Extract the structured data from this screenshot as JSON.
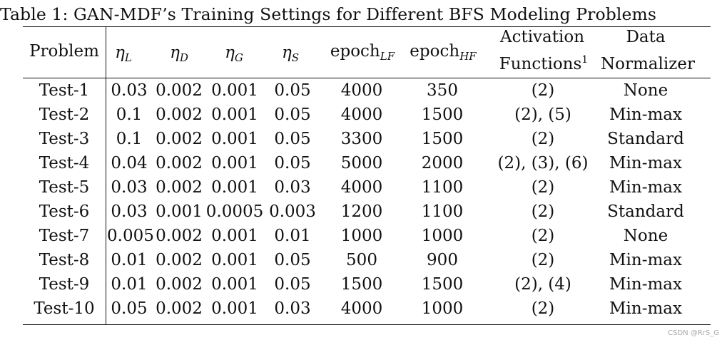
{
  "caption": "Table 1: GAN-MDF’s Training Settings for Different BFS Modeling Problems",
  "headers": {
    "problem": "Problem",
    "eta_l": {
      "symbol": "η",
      "sub": "L"
    },
    "eta_d": {
      "symbol": "η",
      "sub": "D"
    },
    "eta_g": {
      "symbol": "η",
      "sub": "G"
    },
    "eta_s": {
      "symbol": "η",
      "sub": "S"
    },
    "epoch_lf": {
      "base": "epoch",
      "sub": "LF"
    },
    "epoch_hf": {
      "base": "epoch",
      "sub": "HF"
    },
    "activation_line1": "Activation",
    "activation_line2": "Functions",
    "activation_sup": "1",
    "normalizer_line1": "Data",
    "normalizer_line2": "Normalizer"
  },
  "rows": [
    {
      "problem": "Test-1",
      "eta_l": "0.03",
      "eta_d": "0.002",
      "eta_g": "0.001",
      "eta_s": "0.05",
      "epoch_lf": "4000",
      "epoch_hf": "350",
      "activation": "(2)",
      "normalizer": "None"
    },
    {
      "problem": "Test-2",
      "eta_l": "0.1",
      "eta_d": "0.002",
      "eta_g": "0.001",
      "eta_s": "0.05",
      "epoch_lf": "4000",
      "epoch_hf": "1500",
      "activation": "(2), (5)",
      "normalizer": "Min-max"
    },
    {
      "problem": "Test-3",
      "eta_l": "0.1",
      "eta_d": "0.002",
      "eta_g": "0.001",
      "eta_s": "0.05",
      "epoch_lf": "3300",
      "epoch_hf": "1500",
      "activation": "(2)",
      "normalizer": "Standard"
    },
    {
      "problem": "Test-4",
      "eta_l": "0.04",
      "eta_d": "0.002",
      "eta_g": "0.001",
      "eta_s": "0.05",
      "epoch_lf": "5000",
      "epoch_hf": "2000",
      "activation": "(2), (3), (6)",
      "normalizer": "Min-max"
    },
    {
      "problem": "Test-5",
      "eta_l": "0.03",
      "eta_d": "0.002",
      "eta_g": "0.001",
      "eta_s": "0.03",
      "epoch_lf": "4000",
      "epoch_hf": "1100",
      "activation": "(2)",
      "normalizer": "Min-max"
    },
    {
      "problem": "Test-6",
      "eta_l": "0.03",
      "eta_d": "0.001",
      "eta_g": "0.0005",
      "eta_s": "0.003",
      "epoch_lf": "1200",
      "epoch_hf": "1100",
      "activation": "(2)",
      "normalizer": "Standard"
    },
    {
      "problem": "Test-7",
      "eta_l": "0.005",
      "eta_d": "0.002",
      "eta_g": "0.001",
      "eta_s": "0.01",
      "epoch_lf": "1000",
      "epoch_hf": "1000",
      "activation": "(2)",
      "normalizer": "None"
    },
    {
      "problem": "Test-8",
      "eta_l": "0.01",
      "eta_d": "0.002",
      "eta_g": "0.001",
      "eta_s": "0.05",
      "epoch_lf": "500",
      "epoch_hf": "900",
      "activation": "(2)",
      "normalizer": "Min-max"
    },
    {
      "problem": "Test-9",
      "eta_l": "0.01",
      "eta_d": "0.002",
      "eta_g": "0.001",
      "eta_s": "0.05",
      "epoch_lf": "1500",
      "epoch_hf": "1500",
      "activation": "(2), (4)",
      "normalizer": "Min-max"
    },
    {
      "problem": "Test-10",
      "eta_l": "0.05",
      "eta_d": "0.002",
      "eta_g": "0.001",
      "eta_s": "0.03",
      "epoch_lf": "4000",
      "epoch_hf": "1000",
      "activation": "(2)",
      "normalizer": "Min-max"
    }
  ],
  "watermark": "CSDN @RrS_G"
}
